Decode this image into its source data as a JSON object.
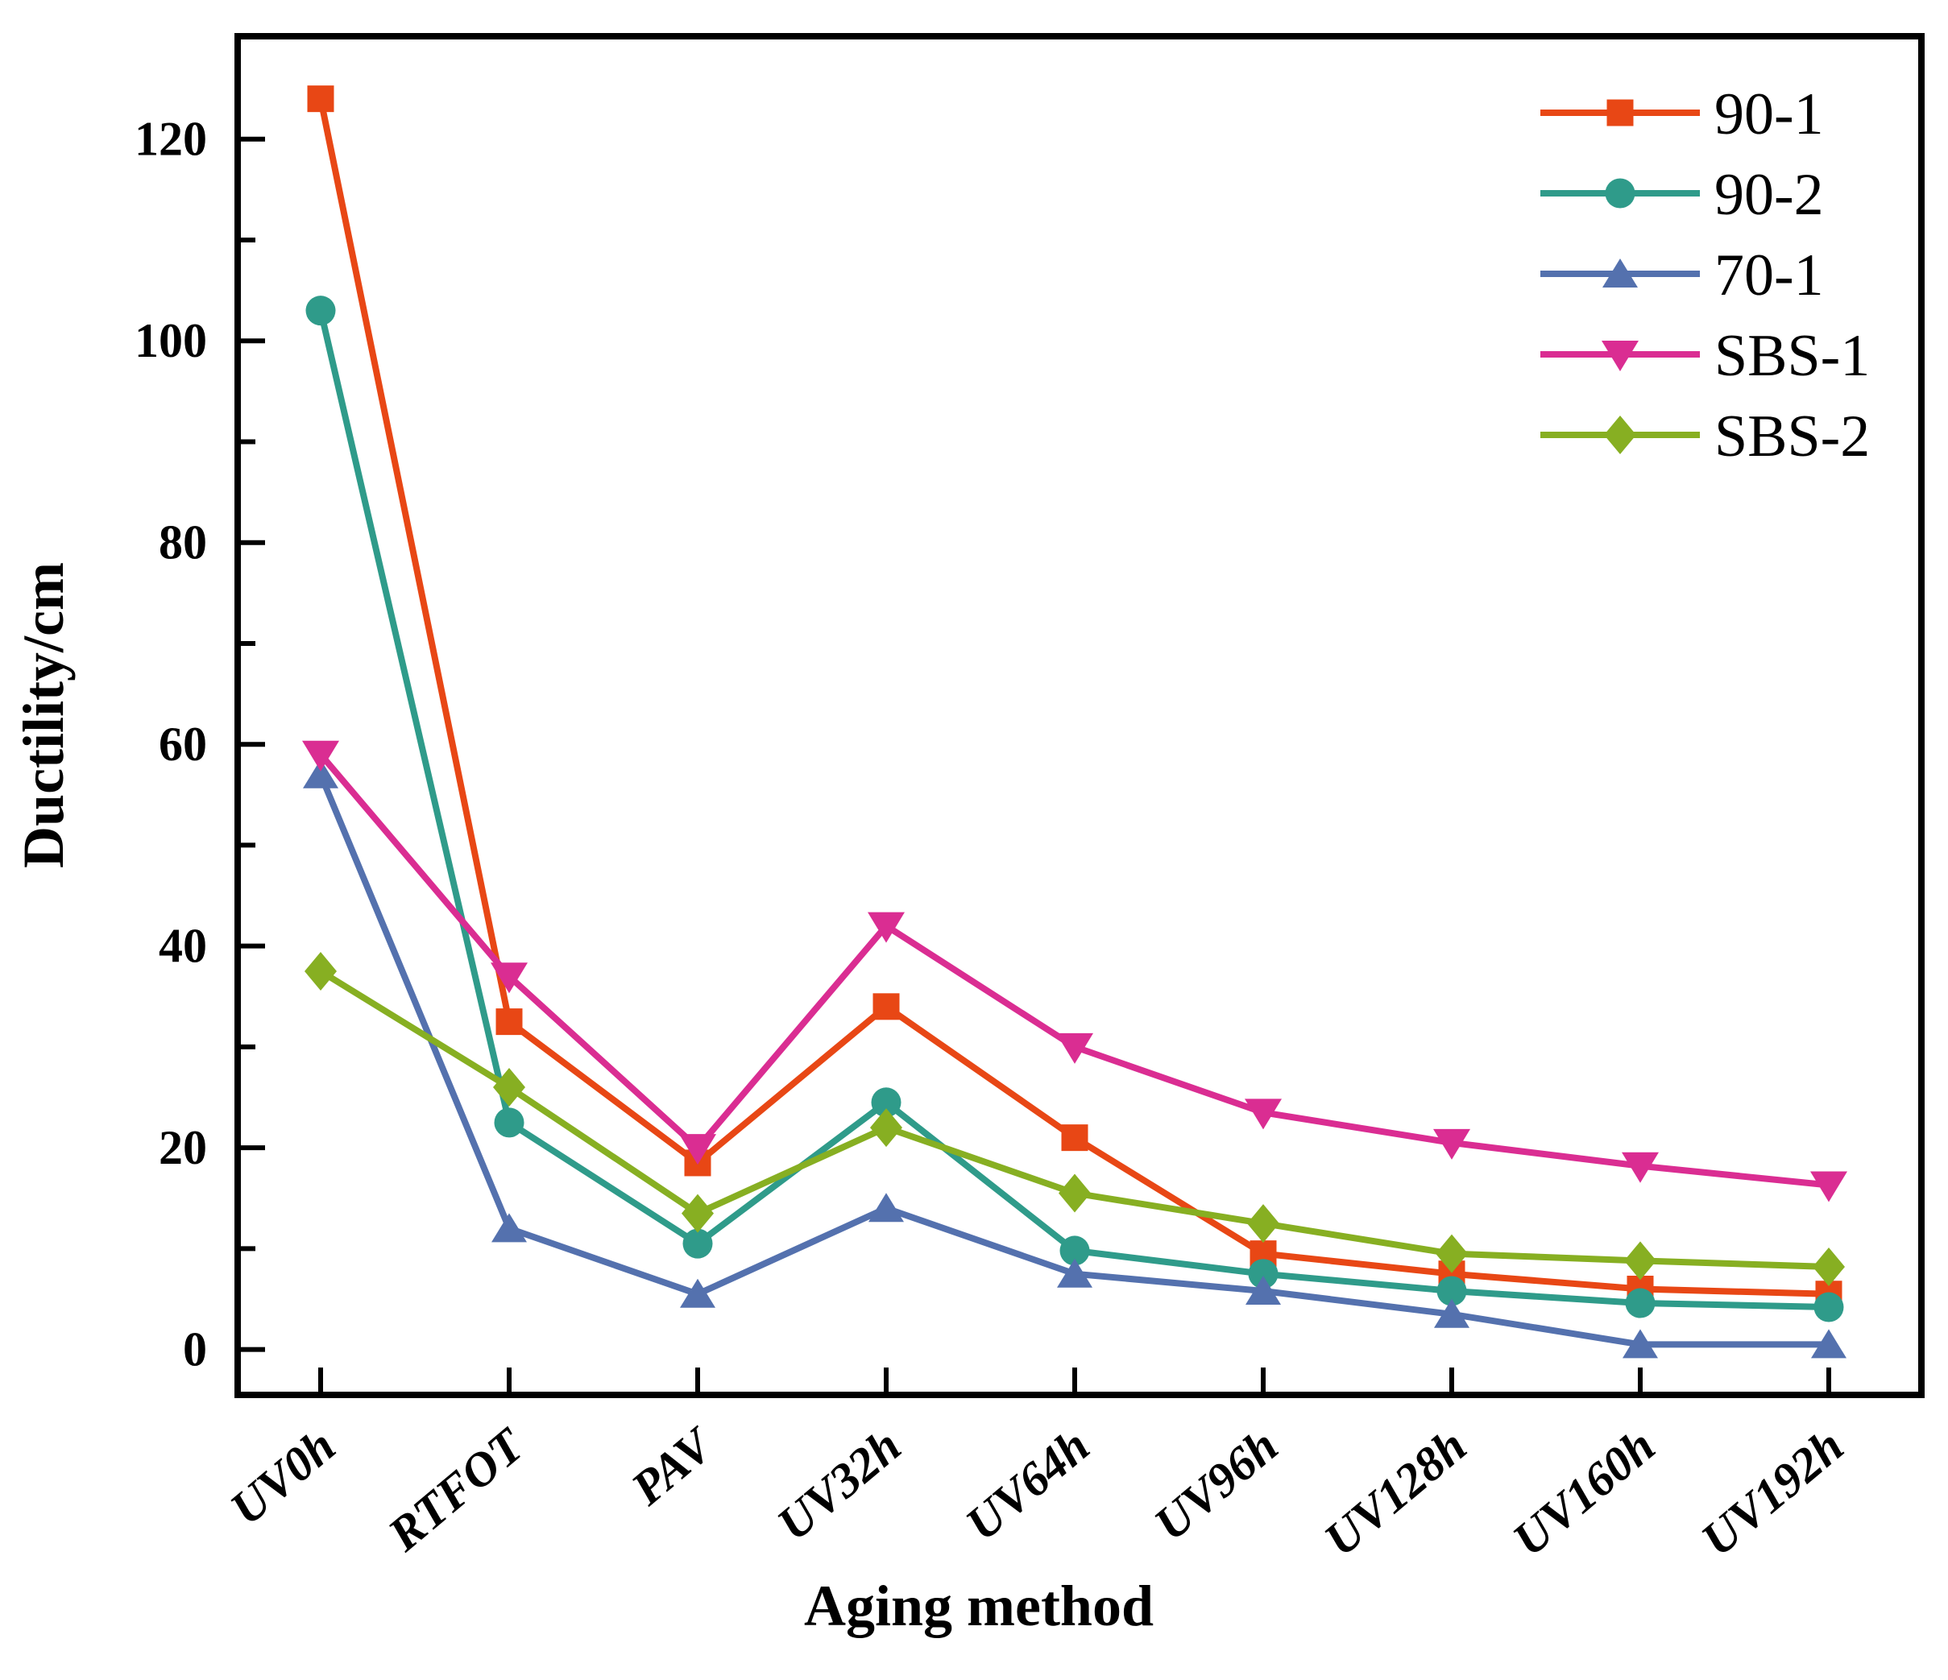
{
  "chart_data": {
    "type": "line",
    "title": "",
    "xlabel": "Aging method",
    "ylabel": "Ductility/cm",
    "categories": [
      "UV0h",
      "RTFOT",
      "PAV",
      "UV32h",
      "UV64h",
      "UV96h",
      "UV128h",
      "UV160h",
      "UV192h"
    ],
    "ylim": [
      -4.5,
      130.2
    ],
    "yticks_major": [
      0,
      20,
      40,
      60,
      80,
      100,
      120
    ],
    "yticks_minor": [
      10,
      30,
      50,
      70,
      90,
      110
    ],
    "grid": false,
    "legend_position": "top-right-inside",
    "axis_color": "#000000",
    "series": [
      {
        "name": "90-1",
        "marker": "square",
        "color": "#E84715",
        "values": [
          124,
          32.5,
          18.5,
          34,
          21,
          9.5,
          7.5,
          6,
          5.5
        ]
      },
      {
        "name": "90-2",
        "marker": "circle",
        "color": "#2F9B8A",
        "values": [
          103,
          22.5,
          10.5,
          24.5,
          9.8,
          7.5,
          5.8,
          4.6,
          4.2
        ]
      },
      {
        "name": "70-1",
        "marker": "triangle-up",
        "color": "#5471AE",
        "values": [
          57,
          12,
          5.5,
          14,
          7.5,
          5.8,
          3.5,
          0.5,
          0.5
        ]
      },
      {
        "name": "SBS-1",
        "marker": "triangle-down",
        "color": "#DA2D92",
        "values": [
          59,
          37,
          20,
          42,
          30,
          23.5,
          20.5,
          18.2,
          16.3
        ]
      },
      {
        "name": "SBS-2",
        "marker": "diamond",
        "color": "#87AF22",
        "values": [
          37.5,
          26,
          13.5,
          22,
          15.5,
          12.5,
          9.5,
          8.8,
          8.2
        ]
      }
    ]
  }
}
